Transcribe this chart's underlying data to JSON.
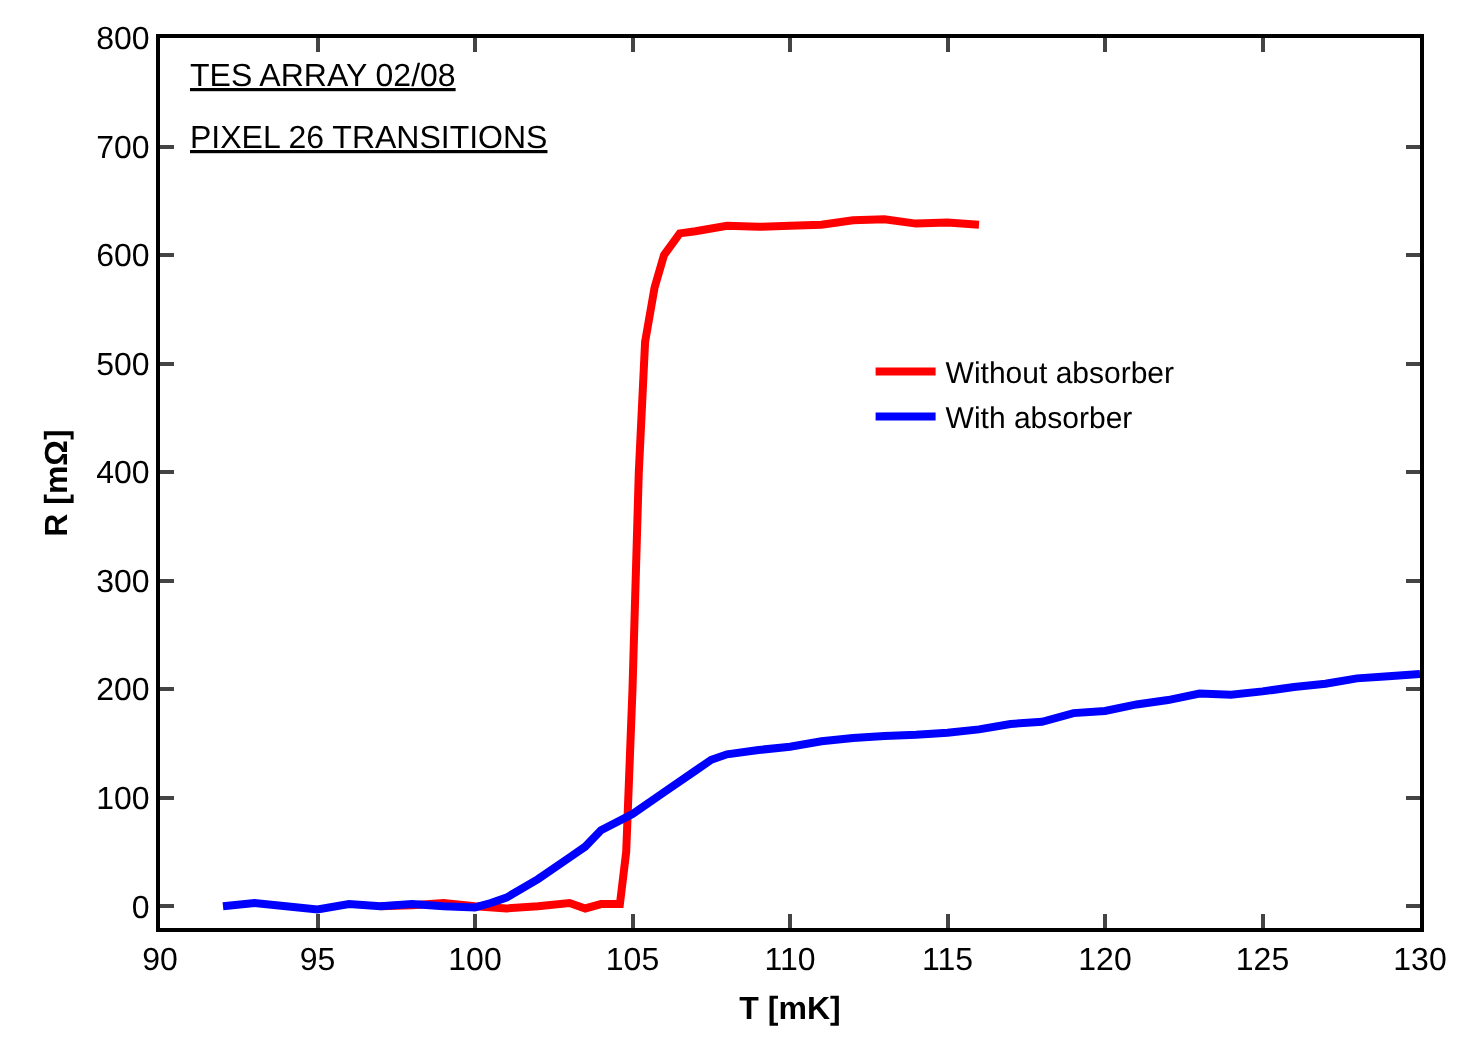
{
  "chart_data": {
    "type": "line",
    "xlabel": "T [mK]",
    "ylabel": "R [mΩ]",
    "annotations": [
      "TES ARRAY 02/08",
      "PIXEL 26 TRANSITIONS"
    ],
    "xlim": [
      90,
      130
    ],
    "xticks": [
      90,
      95,
      100,
      105,
      110,
      115,
      120,
      125,
      130
    ],
    "ylim": [
      -20,
      800
    ],
    "yticks": [
      0,
      100,
      200,
      300,
      400,
      500,
      600,
      700,
      800
    ],
    "grid": false,
    "legend": "right",
    "marker": "none",
    "line_style": "solid",
    "series": [
      {
        "name": "Without absorber",
        "color": "#ff0000",
        "x": [
          97,
          98,
          99,
          100,
          101,
          102,
          103,
          103.5,
          104,
          104.6,
          104.8,
          105,
          105.2,
          105.4,
          105.7,
          106,
          106.5,
          107,
          108,
          109,
          110,
          111,
          112,
          113,
          114,
          115,
          116
        ],
        "values": [
          0,
          1,
          3,
          0,
          -2,
          0,
          3,
          -2,
          2,
          2,
          50,
          200,
          400,
          520,
          570,
          600,
          620,
          622,
          627,
          626,
          627,
          628,
          632,
          633,
          629,
          630,
          628
        ]
      },
      {
        "name": "With absorber",
        "color": "#0000ff",
        "x": [
          92,
          93,
          94,
          95,
          96,
          97,
          98,
          99,
          100,
          100.5,
          101,
          102,
          103,
          103.5,
          104,
          105,
          106,
          107,
          107.5,
          108,
          109,
          110,
          111,
          112,
          113,
          114,
          115,
          116,
          117,
          118,
          119,
          120,
          121,
          122,
          123,
          124,
          125,
          126,
          127,
          128,
          129,
          130
        ],
        "values": [
          0,
          3,
          0,
          -3,
          2,
          0,
          2,
          0,
          -1,
          3,
          8,
          25,
          45,
          55,
          70,
          85,
          105,
          125,
          135,
          140,
          144,
          147,
          152,
          155,
          157,
          158,
          160,
          163,
          168,
          170,
          178,
          180,
          186,
          190,
          196,
          195,
          198,
          202,
          205,
          210,
          212,
          214
        ]
      }
    ]
  }
}
